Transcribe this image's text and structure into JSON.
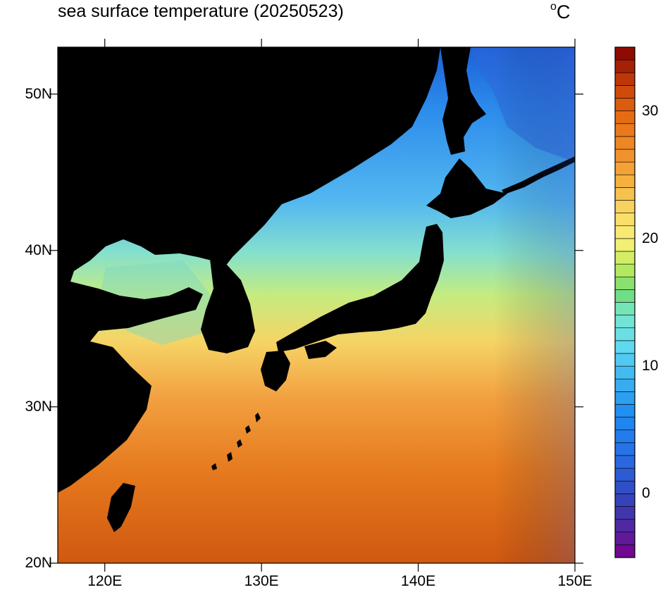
{
  "title": "sea surface temperature (20250523)",
  "units": {
    "degree_symbol": "o",
    "letter": "C"
  },
  "map": {
    "lon_range": [
      117,
      150
    ],
    "lat_range": [
      20,
      53
    ],
    "lon_ticks": [
      {
        "value": 120,
        "label": "120E"
      },
      {
        "value": 130,
        "label": "130E"
      },
      {
        "value": 140,
        "label": "140E"
      },
      {
        "value": 150,
        "label": "150E"
      }
    ],
    "lat_ticks": [
      {
        "value": 20,
        "label": "20N"
      },
      {
        "value": 30,
        "label": "30N"
      },
      {
        "value": 40,
        "label": "40N"
      },
      {
        "value": 50,
        "label": "50N"
      }
    ],
    "land_color": "#000000"
  },
  "colorbar": {
    "range": [
      -5,
      35
    ],
    "step": 1,
    "ticks": [
      {
        "value": 0,
        "label": "0"
      },
      {
        "value": 10,
        "label": "10"
      },
      {
        "value": 20,
        "label": "20"
      },
      {
        "value": 30,
        "label": "30"
      }
    ]
  }
}
